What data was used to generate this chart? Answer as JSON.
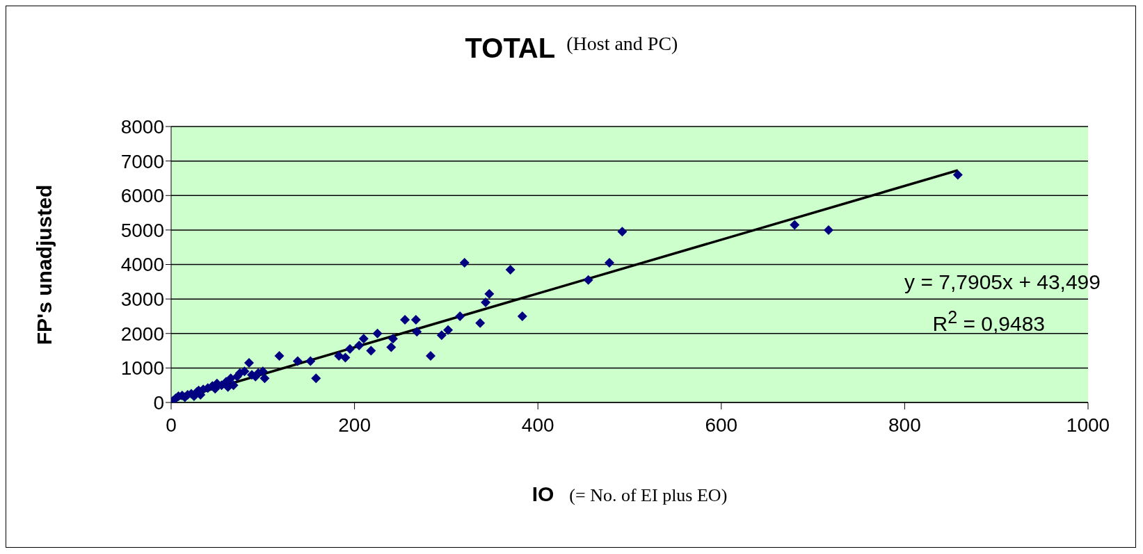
{
  "chart_data": {
    "type": "scatter",
    "title": "TOTAL",
    "subtitle": "(Host and PC)",
    "xlabel": "IO (= No. of EI plus EO)",
    "ylabel": "FP's unadjusted",
    "xlim": [
      0,
      1000
    ],
    "xticks": [
      0,
      200,
      400,
      600,
      800,
      1000
    ],
    "ylim": [
      0,
      8000
    ],
    "yticks": [
      0,
      1000,
      2000,
      3000,
      4000,
      5000,
      6000,
      7000,
      8000
    ],
    "grid": "y",
    "legend": false,
    "marker": "diamond",
    "series": [
      {
        "type": "scatter",
        "color": "#000080",
        "x": [
          2,
          5,
          8,
          12,
          15,
          18,
          22,
          25,
          28,
          30,
          32,
          35,
          40,
          45,
          48,
          50,
          55,
          60,
          62,
          65,
          68,
          72,
          75,
          80,
          85,
          88,
          92,
          95,
          100,
          102,
          118,
          138,
          152,
          158,
          183,
          190,
          195,
          205,
          210,
          218,
          225,
          240,
          242,
          255,
          267,
          268,
          283,
          295,
          302,
          315,
          320,
          337,
          343,
          347,
          370,
          383,
          455,
          478,
          492,
          680,
          717,
          858
        ],
        "values": [
          50,
          120,
          180,
          200,
          150,
          220,
          250,
          180,
          300,
          350,
          220,
          380,
          420,
          480,
          400,
          550,
          500,
          600,
          450,
          700,
          500,
          750,
          850,
          900,
          1150,
          800,
          750,
          850,
          900,
          700,
          1350,
          1200,
          1200,
          700,
          1350,
          1300,
          1550,
          1650,
          1850,
          1500,
          2000,
          1600,
          1850,
          2400,
          2400,
          2050,
          1350,
          1950,
          2100,
          2500,
          4050,
          2300,
          2900,
          3150,
          3850,
          2500,
          3550,
          4050,
          4950,
          5150,
          5000,
          6600
        ]
      },
      {
        "type": "line",
        "color": "#000000",
        "x": [
          0,
          858
        ],
        "values": [
          40,
          6730
        ],
        "marker": "none"
      }
    ],
    "annotations": [
      "y = 7,7905x + 43,499",
      "R$^{2}$ = 0,9483"
    ]
  }
}
